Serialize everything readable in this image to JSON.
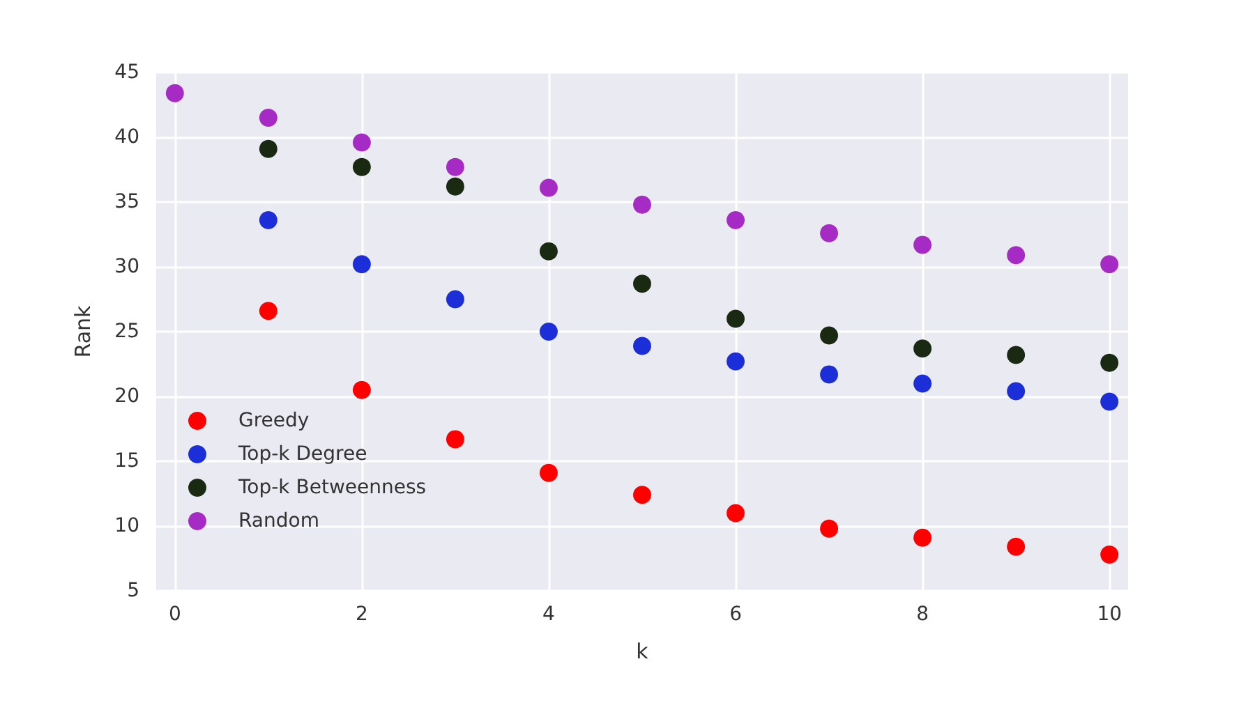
{
  "chart_data": {
    "type": "scatter",
    "xlabel": "k",
    "ylabel": "Rank",
    "x": [
      0,
      1,
      2,
      3,
      4,
      5,
      6,
      7,
      8,
      9,
      10
    ],
    "xlim": [
      -0.2,
      10.2
    ],
    "xticks": [
      0,
      2,
      4,
      6,
      8,
      10
    ],
    "ylim": [
      5,
      45
    ],
    "yticks": [
      5,
      10,
      15,
      20,
      25,
      30,
      35,
      40,
      45
    ],
    "grid": true,
    "legend": "bottom left",
    "marker": "circle",
    "series": [
      {
        "name": "Greedy",
        "color": "#ff0000",
        "values": [
          null,
          26.6,
          20.5,
          16.7,
          14.1,
          12.4,
          11.0,
          9.8,
          9.1,
          8.4,
          7.8
        ]
      },
      {
        "name": "Top-k Degree",
        "color": "#1c2ed8",
        "values": [
          null,
          33.6,
          30.2,
          27.5,
          25.0,
          23.9,
          22.7,
          21.7,
          21.0,
          20.4,
          19.6
        ]
      },
      {
        "name": "Top-k Betweenness",
        "color": "#1a2a12",
        "values": [
          null,
          39.1,
          37.7,
          36.2,
          31.2,
          28.7,
          26.0,
          24.7,
          23.7,
          23.2,
          22.6
        ]
      },
      {
        "name": "Random",
        "color": "#a62bc4",
        "values": [
          43.4,
          41.5,
          39.6,
          37.7,
          36.1,
          34.8,
          33.6,
          32.6,
          31.7,
          30.9,
          30.2
        ]
      }
    ]
  }
}
